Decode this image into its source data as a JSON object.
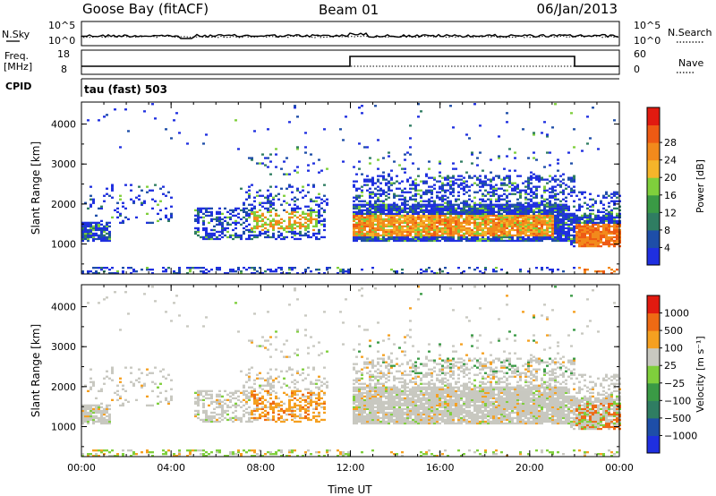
{
  "header": {
    "station": "Goose Bay (fitACF)",
    "beam": "Beam 01",
    "date": "06/Jan/2013"
  },
  "top_panels": {
    "nsky": {
      "label": "N.Sky",
      "ticks": [
        "10^5",
        "10^0"
      ]
    },
    "nsearch": {
      "label": "N.Search",
      "ticks": [
        "10^5",
        "10^0"
      ]
    },
    "freq": {
      "label_line1": "Freq.",
      "label_line2": "[MHz]",
      "ticks": [
        "18",
        "8"
      ]
    },
    "nave": {
      "label": "Nave",
      "ticks": [
        "60",
        "0"
      ]
    },
    "cpid": {
      "label": "CPID",
      "value": "tau (fast) 503"
    }
  },
  "colors": {
    "power": [
      "#1f2fe0",
      "#1e4ea8",
      "#2f7d62",
      "#3a9a45",
      "#7fcf3c",
      "#f5b52a",
      "#f28a1c",
      "#ee5a14",
      "#e11a10"
    ],
    "velocity": [
      "#1f2fe0",
      "#1e4ea8",
      "#2f7d62",
      "#3a9a45",
      "#7fcf3c",
      "#c8c8c0",
      "#f5a020",
      "#ee6a14",
      "#e11a10"
    ]
  },
  "chart_data": [
    {
      "type": "heatmap",
      "name": "power",
      "xlabel": "",
      "ylabel": "Slant Range [km]",
      "x_ticks": [
        "00:00",
        "04:00",
        "08:00",
        "12:00",
        "16:00",
        "20:00",
        "00:00"
      ],
      "y_ticks": [
        "1000",
        "2000",
        "3000",
        "4000"
      ],
      "ylim": [
        250,
        4550
      ],
      "xlim_hours": [
        0,
        24
      ],
      "colorbar": {
        "label": "Power [dB]",
        "ticks": [
          "4",
          "8",
          "12",
          "16",
          "20",
          "24",
          "28"
        ]
      }
    },
    {
      "type": "heatmap",
      "name": "velocity",
      "xlabel": "Time UT",
      "ylabel": "Slant Range [km]",
      "x_ticks": [
        "00:00",
        "04:00",
        "08:00",
        "12:00",
        "16:00",
        "20:00",
        "00:00"
      ],
      "y_ticks": [
        "1000",
        "2000",
        "3000",
        "4000"
      ],
      "ylim": [
        250,
        4550
      ],
      "xlim_hours": [
        0,
        24
      ],
      "colorbar": {
        "label": "Velocity [m s⁻¹]",
        "ticks": [
          "1000",
          "500",
          "100",
          "25",
          "−25",
          "−100",
          "−500",
          "−1000"
        ]
      }
    }
  ]
}
